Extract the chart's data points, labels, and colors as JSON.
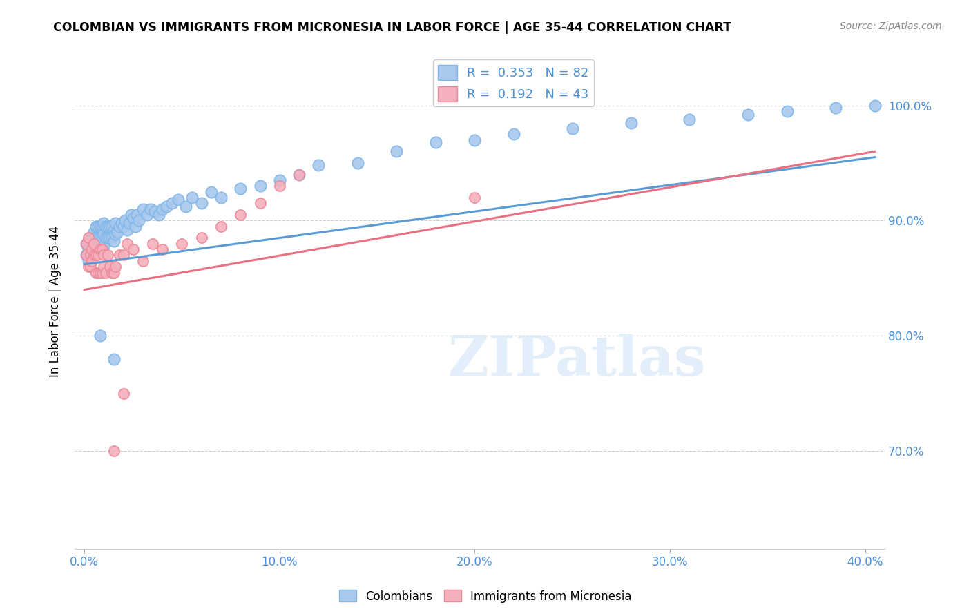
{
  "title": "COLOMBIAN VS IMMIGRANTS FROM MICRONESIA IN LABOR FORCE | AGE 35-44 CORRELATION CHART",
  "source": "Source: ZipAtlas.com",
  "ylabel": "In Labor Force | Age 35-44",
  "xlabel_ticks": [
    "0.0%",
    "10.0%",
    "20.0%",
    "30.0%",
    "40.0%"
  ],
  "xlabel_vals": [
    0.0,
    0.1,
    0.2,
    0.3,
    0.4
  ],
  "ylabel_ticks": [
    "70.0%",
    "80.0%",
    "90.0%",
    "100.0%"
  ],
  "ylabel_vals": [
    0.7,
    0.8,
    0.9,
    1.0
  ],
  "xlim": [
    -0.005,
    0.41
  ],
  "ylim": [
    0.615,
    1.045
  ],
  "blue_color": "#A8C8EE",
  "blue_edge_color": "#7EB6E8",
  "pink_color": "#F4B0BC",
  "pink_edge_color": "#EE8898",
  "blue_line_color": "#5B9BD5",
  "pink_line_color": "#E87080",
  "R_blue": 0.353,
  "N_blue": 82,
  "R_pink": 0.192,
  "N_pink": 43,
  "legend_label_blue": "Colombians",
  "legend_label_pink": "Immigrants from Micronesia",
  "watermark": "ZIPatlas",
  "blue_x": [
    0.001,
    0.001,
    0.002,
    0.002,
    0.003,
    0.003,
    0.004,
    0.004,
    0.005,
    0.005,
    0.006,
    0.006,
    0.006,
    0.007,
    0.007,
    0.007,
    0.008,
    0.008,
    0.008,
    0.009,
    0.009,
    0.009,
    0.01,
    0.01,
    0.01,
    0.011,
    0.011,
    0.012,
    0.012,
    0.013,
    0.013,
    0.014,
    0.014,
    0.015,
    0.015,
    0.016,
    0.016,
    0.017,
    0.018,
    0.019,
    0.02,
    0.021,
    0.022,
    0.023,
    0.024,
    0.025,
    0.026,
    0.027,
    0.028,
    0.03,
    0.032,
    0.034,
    0.036,
    0.038,
    0.04,
    0.042,
    0.045,
    0.048,
    0.052,
    0.055,
    0.06,
    0.065,
    0.07,
    0.08,
    0.09,
    0.1,
    0.11,
    0.12,
    0.14,
    0.16,
    0.18,
    0.2,
    0.22,
    0.25,
    0.28,
    0.31,
    0.34,
    0.36,
    0.385,
    0.405,
    0.015,
    0.008
  ],
  "blue_y": [
    0.87,
    0.88,
    0.865,
    0.875,
    0.875,
    0.885,
    0.875,
    0.885,
    0.88,
    0.89,
    0.875,
    0.885,
    0.895,
    0.875,
    0.885,
    0.895,
    0.875,
    0.885,
    0.895,
    0.875,
    0.885,
    0.895,
    0.878,
    0.888,
    0.898,
    0.885,
    0.895,
    0.885,
    0.895,
    0.885,
    0.895,
    0.885,
    0.895,
    0.882,
    0.892,
    0.888,
    0.898,
    0.89,
    0.895,
    0.898,
    0.895,
    0.9,
    0.892,
    0.898,
    0.905,
    0.902,
    0.895,
    0.905,
    0.9,
    0.91,
    0.905,
    0.91,
    0.908,
    0.905,
    0.91,
    0.912,
    0.915,
    0.918,
    0.912,
    0.92,
    0.915,
    0.925,
    0.92,
    0.928,
    0.93,
    0.935,
    0.94,
    0.948,
    0.95,
    0.96,
    0.968,
    0.97,
    0.975,
    0.98,
    0.985,
    0.988,
    0.992,
    0.995,
    0.998,
    1.0,
    0.78,
    0.8
  ],
  "pink_x": [
    0.001,
    0.001,
    0.002,
    0.002,
    0.003,
    0.003,
    0.004,
    0.004,
    0.005,
    0.005,
    0.006,
    0.006,
    0.007,
    0.007,
    0.008,
    0.008,
    0.009,
    0.009,
    0.01,
    0.01,
    0.011,
    0.012,
    0.013,
    0.014,
    0.015,
    0.016,
    0.018,
    0.02,
    0.022,
    0.025,
    0.03,
    0.035,
    0.04,
    0.05,
    0.06,
    0.07,
    0.08,
    0.09,
    0.1,
    0.11,
    0.015,
    0.02,
    0.2
  ],
  "pink_y": [
    0.87,
    0.88,
    0.86,
    0.885,
    0.86,
    0.87,
    0.865,
    0.875,
    0.87,
    0.88,
    0.855,
    0.87,
    0.855,
    0.87,
    0.855,
    0.875,
    0.855,
    0.875,
    0.86,
    0.87,
    0.855,
    0.87,
    0.86,
    0.855,
    0.855,
    0.86,
    0.87,
    0.87,
    0.88,
    0.875,
    0.865,
    0.88,
    0.875,
    0.88,
    0.885,
    0.895,
    0.905,
    0.915,
    0.93,
    0.94,
    0.7,
    0.75,
    0.92
  ],
  "blue_line_x": [
    0.0,
    0.405
  ],
  "blue_line_y": [
    0.862,
    0.955
  ],
  "pink_line_x": [
    0.0,
    0.405
  ],
  "pink_line_y": [
    0.84,
    0.96
  ]
}
